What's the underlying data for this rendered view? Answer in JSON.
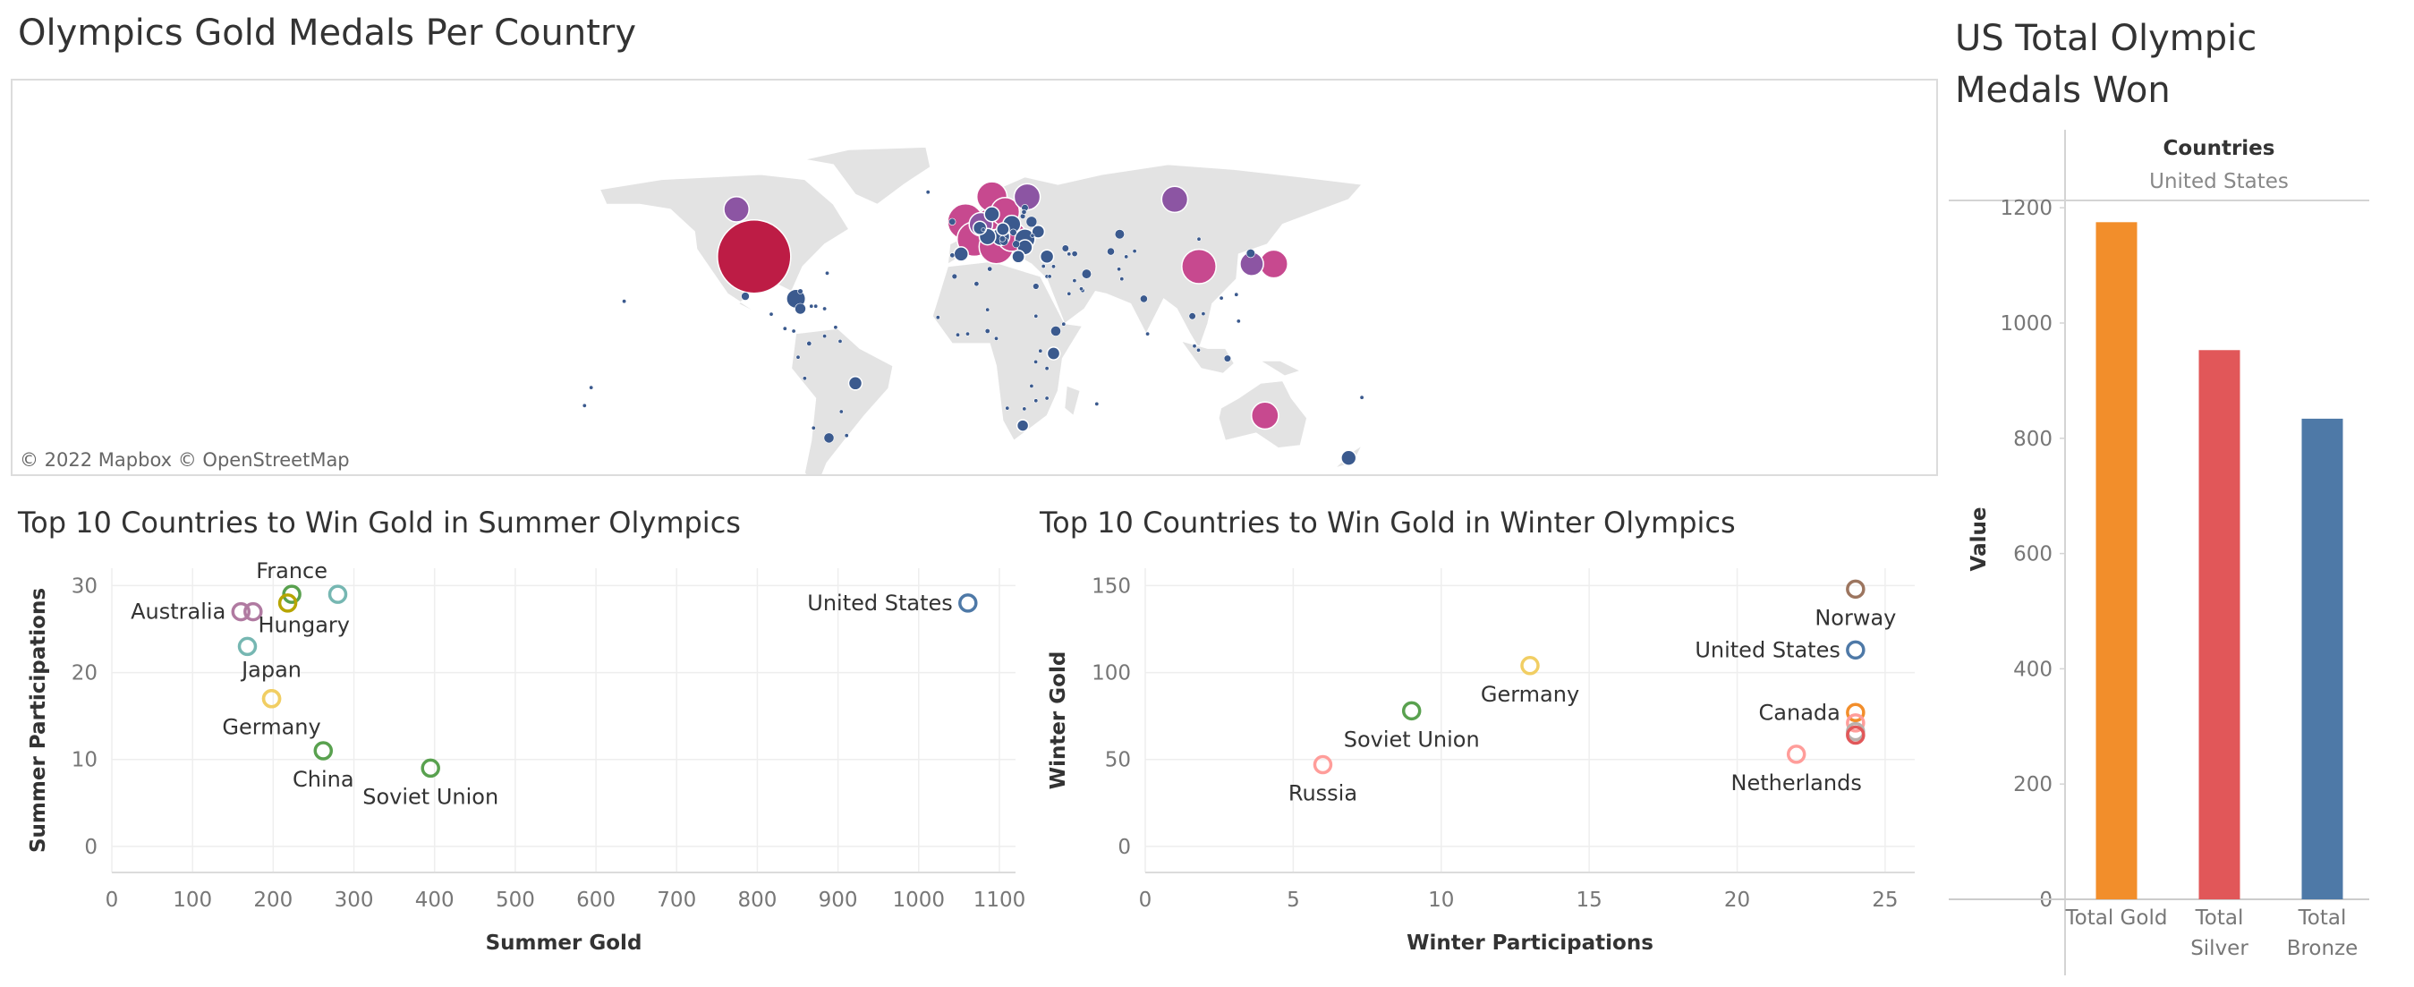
{
  "map": {
    "title": "Olympics Gold Medals Per Country",
    "attribution": "© 2022 Mapbox  © OpenStreetMap",
    "colors": {
      "land": "#e3e3e3",
      "low": "#3b5a8e",
      "mid": "#8c55a3",
      "high": "#c7498f",
      "max": "#bd1c45"
    },
    "bubbles": [
      {
        "country": "United States",
        "lon": -98,
        "lat": 39,
        "gold": 1180
      },
      {
        "country": "Canada",
        "lon": -106,
        "lat": 58,
        "gold": 140
      },
      {
        "country": "Russia",
        "lon": 93,
        "lat": 62,
        "gold": 150
      },
      {
        "country": "China",
        "lon": 104,
        "lat": 35,
        "gold": 260
      },
      {
        "country": "Japan",
        "lon": 138,
        "lat": 36,
        "gold": 170
      },
      {
        "country": "South Korea",
        "lon": 128,
        "lat": 36,
        "gold": 120
      },
      {
        "country": "Australia",
        "lon": 134,
        "lat": -25,
        "gold": 160
      },
      {
        "country": "New Zealand",
        "lon": 172,
        "lat": -42,
        "gold": 50
      },
      {
        "country": "Norway",
        "lon": 10,
        "lat": 63,
        "gold": 200
      },
      {
        "country": "Sweden",
        "lon": 16,
        "lat": 57,
        "gold": 180
      },
      {
        "country": "Finland",
        "lon": 26,
        "lat": 63,
        "gold": 150
      },
      {
        "country": "United Kingdom",
        "lon": -2,
        "lat": 53,
        "gold": 280
      },
      {
        "country": "Germany",
        "lon": 10,
        "lat": 51,
        "gold": 300
      },
      {
        "country": "France",
        "lon": 2,
        "lat": 46,
        "gold": 260
      },
      {
        "country": "Italy",
        "lon": 12,
        "lat": 43,
        "gold": 260
      },
      {
        "country": "Hungary",
        "lon": 19,
        "lat": 47,
        "gold": 190
      },
      {
        "country": "Netherlands",
        "lon": 5,
        "lat": 52,
        "gold": 120
      },
      {
        "country": "Switzerland",
        "lon": 8,
        "lat": 47,
        "gold": 60
      },
      {
        "country": "Austria",
        "lon": 14,
        "lat": 47,
        "gold": 70
      },
      {
        "country": "Poland",
        "lon": 19,
        "lat": 52,
        "gold": 70
      },
      {
        "country": "Cuba",
        "lon": -79,
        "lat": 22,
        "gold": 80
      },
      {
        "country": "Brazil",
        "lon": -52,
        "lat": -12,
        "gold": 40
      },
      {
        "country": "Kenya",
        "lon": 38,
        "lat": 0,
        "gold": 35
      },
      {
        "country": "South Africa",
        "lon": 24,
        "lat": -29,
        "gold": 30
      },
      {
        "country": "Spain",
        "lon": -4,
        "lat": 40,
        "gold": 45
      },
      {
        "country": "Romania",
        "lon": 25,
        "lat": 46,
        "gold": 90
      },
      {
        "country": "Belarus",
        "lon": 28,
        "lat": 53,
        "gold": 25
      },
      {
        "country": "Ukraine",
        "lon": 31,
        "lat": 49,
        "gold": 35
      },
      {
        "country": "Turkey",
        "lon": 35,
        "lat": 39,
        "gold": 40
      },
      {
        "country": "Iran",
        "lon": 53,
        "lat": 32,
        "gold": 20
      },
      {
        "country": "Kazakhstan",
        "lon": 68,
        "lat": 48,
        "gold": 20
      },
      {
        "country": "Ethiopia",
        "lon": 39,
        "lat": 9,
        "gold": 22
      },
      {
        "country": "Egypt",
        "lon": 30,
        "lat": 27,
        "gold": 8
      },
      {
        "country": "Argentina",
        "lon": -64,
        "lat": -34,
        "gold": 22
      },
      {
        "country": "Mexico",
        "lon": -102,
        "lat": 23,
        "gold": 14
      },
      {
        "country": "Jamaica",
        "lon": -77,
        "lat": 18,
        "gold": 25
      },
      {
        "country": "India",
        "lon": 79,
        "lat": 22,
        "gold": 12
      },
      {
        "country": "Thailand",
        "lon": 101,
        "lat": 15,
        "gold": 10
      },
      {
        "country": "Indonesia",
        "lon": 117,
        "lat": -2,
        "gold": 10
      },
      {
        "country": "Uzbekistan",
        "lon": 64,
        "lat": 41,
        "gold": 12
      },
      {
        "country": "Greece",
        "lon": 22,
        "lat": 39,
        "gold": 35
      },
      {
        "country": "Denmark",
        "lon": 10,
        "lat": 56,
        "gold": 50
      },
      {
        "country": "Czechia",
        "lon": 15,
        "lat": 50,
        "gold": 35
      },
      {
        "country": "Bulgaria",
        "lon": 25,
        "lat": 42.7,
        "gold": 50
      },
      {
        "country": "Morocco",
        "lon": -7,
        "lat": 31,
        "gold": 6
      },
      {
        "country": "Algeria",
        "lon": 3,
        "lat": 28,
        "gold": 5
      },
      {
        "country": "Nigeria",
        "lon": 8,
        "lat": 9,
        "gold": 5
      },
      {
        "country": "Colombia",
        "lon": -73,
        "lat": 4,
        "gold": 5
      },
      {
        "country": "Peru",
        "lon": -75,
        "lat": -10,
        "gold": 2
      },
      {
        "country": "Chile",
        "lon": -71,
        "lat": -30,
        "gold": 3
      },
      {
        "country": "Venezuela",
        "lon": -66,
        "lat": 7,
        "gold": 3
      },
      {
        "country": "Pakistan",
        "lon": 69,
        "lat": 30,
        "gold": 3
      },
      {
        "country": "Mongolia",
        "lon": 104,
        "lat": 46,
        "gold": 3
      },
      {
        "country": "Saudi Arabia",
        "lon": 45,
        "lat": 24,
        "gold": 1
      },
      {
        "country": "Vietnam",
        "lon": 106,
        "lat": 16,
        "gold": 1
      },
      {
        "country": "Philippines",
        "lon": 122,
        "lat": 13,
        "gold": 1
      },
      {
        "country": "Malaysia",
        "lon": 102,
        "lat": 3,
        "gold": 1
      },
      {
        "country": "Taiwan",
        "lon": 121,
        "lat": 23.7,
        "gold": 2
      },
      {
        "country": "Tunisia",
        "lon": 9,
        "lat": 34,
        "gold": 5
      },
      {
        "country": "Cameroon",
        "lon": 12,
        "lat": 6,
        "gold": 3
      },
      {
        "country": "Uganda",
        "lon": 32,
        "lat": 1,
        "gold": 3
      },
      {
        "country": "Tanzania",
        "lon": 35,
        "lat": -6,
        "gold": 1
      },
      {
        "country": "Zimbabwe",
        "lon": 30,
        "lat": -19,
        "gold": 3
      },
      {
        "country": "Mozambique",
        "lon": 35,
        "lat": -18,
        "gold": 1
      },
      {
        "country": "Namibia",
        "lon": 17,
        "lat": -22,
        "gold": 1
      },
      {
        "country": "Ecuador",
        "lon": -78,
        "lat": -1.5,
        "gold": 3
      },
      {
        "country": "Uruguay",
        "lon": -56,
        "lat": -33,
        "gold": 2
      },
      {
        "country": "Dominican Republic",
        "lon": -70,
        "lat": 19,
        "gold": 3
      },
      {
        "country": "Puerto Rico",
        "lon": -66,
        "lat": 18,
        "gold": 2
      },
      {
        "country": "Bahamas",
        "lon": -77,
        "lat": 25,
        "gold": 6
      },
      {
        "country": "Trinidad and Tobago",
        "lon": -61,
        "lat": 10.5,
        "gold": 3
      },
      {
        "country": "Panama",
        "lon": -80,
        "lat": 9,
        "gold": 1
      },
      {
        "country": "Costa Rica",
        "lon": -84,
        "lat": 10,
        "gold": 1
      },
      {
        "country": "Haiti",
        "lon": -72,
        "lat": 19,
        "gold": 1
      },
      {
        "country": "Bermuda",
        "lon": -64.8,
        "lat": 32.3,
        "gold": 1
      },
      {
        "country": "Fiji",
        "lon": 178,
        "lat": -17.7,
        "gold": 1
      },
      {
        "country": "Hawaii",
        "lon": -157,
        "lat": 21,
        "gold": 1
      },
      {
        "country": "Samoa",
        "lon": -172,
        "lat": -13.7,
        "gold": 1
      },
      {
        "country": "Tonga",
        "lon": -175,
        "lat": -21,
        "gold": 1
      },
      {
        "country": "Ireland",
        "lon": -8,
        "lat": 53,
        "gold": 10
      },
      {
        "country": "Portugal",
        "lon": -8,
        "lat": 39.5,
        "gold": 5
      },
      {
        "country": "Belgium",
        "lon": 4.5,
        "lat": 50.5,
        "gold": 40
      },
      {
        "country": "Estonia",
        "lon": 25,
        "lat": 58.6,
        "gold": 10
      },
      {
        "country": "Latvia",
        "lon": 24.6,
        "lat": 56.9,
        "gold": 5
      },
      {
        "country": "Lithuania",
        "lon": 24,
        "lat": 55.2,
        "gold": 6
      },
      {
        "country": "Slovakia",
        "lon": 19.7,
        "lat": 48.7,
        "gold": 10
      },
      {
        "country": "Slovenia",
        "lon": 14.8,
        "lat": 46.1,
        "gold": 8
      },
      {
        "country": "Croatia",
        "lon": 15.5,
        "lat": 45.1,
        "gold": 15
      },
      {
        "country": "Serbia",
        "lon": 21,
        "lat": 44,
        "gold": 12
      },
      {
        "country": "Georgia",
        "lon": 43.4,
        "lat": 42.3,
        "gold": 10
      },
      {
        "country": "Armenia",
        "lon": 45,
        "lat": 40,
        "gold": 2
      },
      {
        "country": "Azerbaijan",
        "lon": 47.6,
        "lat": 40.1,
        "gold": 7
      },
      {
        "country": "Israel",
        "lon": 35,
        "lat": 31,
        "gold": 3
      },
      {
        "country": "Syria",
        "lon": 38,
        "lat": 35,
        "gold": 1
      },
      {
        "country": "Kyrgyzstan",
        "lon": 74.8,
        "lat": 41.2,
        "gold": 1
      },
      {
        "country": "Tajikistan",
        "lon": 71,
        "lat": 38.9,
        "gold": 1
      },
      {
        "country": "North Korea",
        "lon": 127.5,
        "lat": 40.3,
        "gold": 16
      },
      {
        "country": "Hong Kong",
        "lon": 114.2,
        "lat": 22.3,
        "gold": 2
      },
      {
        "country": "Singapore",
        "lon": 103.8,
        "lat": 1.35,
        "gold": 1
      },
      {
        "country": "Sri Lanka",
        "lon": 80.7,
        "lat": 7.9,
        "gold": 1
      },
      {
        "country": "Qatar",
        "lon": 51.2,
        "lat": 25.3,
        "gold": 2
      },
      {
        "country": "Bahrain",
        "lon": 50.6,
        "lat": 26,
        "gold": 1
      },
      {
        "country": "Kuwait",
        "lon": 47.5,
        "lat": 29.3,
        "gold": 1
      },
      {
        "country": "Jordan",
        "lon": 36.2,
        "lat": 31,
        "gold": 1
      },
      {
        "country": "Burundi",
        "lon": 29.9,
        "lat": -3.4,
        "gold": 1
      },
      {
        "country": "Zambia",
        "lon": 28,
        "lat": -13.1,
        "gold": 1
      },
      {
        "country": "Ghana",
        "lon": -1,
        "lat": 7.9,
        "gold": 1
      },
      {
        "country": "Senegal",
        "lon": -14.5,
        "lat": 14.5,
        "gold": 1
      },
      {
        "country": "Ivory Coast",
        "lon": -5.5,
        "lat": 7.5,
        "gold": 1
      },
      {
        "country": "Niger",
        "lon": 8,
        "lat": 17.6,
        "gold": 1
      },
      {
        "country": "Sudan",
        "lon": 30,
        "lat": 15,
        "gold": 1
      },
      {
        "country": "Djibouti",
        "lon": 42.6,
        "lat": 11.8,
        "gold": 1
      },
      {
        "country": "Botswana",
        "lon": 24.7,
        "lat": -22.3,
        "gold": 1
      },
      {
        "country": "Mauritius",
        "lon": 57.6,
        "lat": -20.3,
        "gold": 1
      },
      {
        "country": "Guatemala",
        "lon": -90.2,
        "lat": 15.8,
        "gold": 1
      },
      {
        "country": "Paraguay",
        "lon": -58.4,
        "lat": -23.4,
        "gold": 1
      },
      {
        "country": "Guyana",
        "lon": -58.9,
        "lat": 4.9,
        "gold": 1
      },
      {
        "country": "Afghanistan",
        "lon": 67.7,
        "lat": 33.9,
        "gold": 1
      },
      {
        "country": "Cyprus",
        "lon": 33.4,
        "lat": 35.1,
        "gold": 1
      },
      {
        "country": "Iceland",
        "lon": -19,
        "lat": 64.9,
        "gold": 1
      },
      {
        "country": "Moldova",
        "lon": 28.4,
        "lat": 47.4,
        "gold": 1
      },
      {
        "country": "Luxembourg",
        "lon": 6.1,
        "lat": 49.8,
        "gold": 2
      }
    ]
  },
  "summer": {
    "title": "Top 10 Countries to Win Gold in Summer Olympics",
    "chart_data": {
      "type": "scatter",
      "xlabel": "Summer Gold",
      "ylabel": "Summer Participations",
      "xlim": [
        0,
        1120
      ],
      "ylim": [
        -3,
        32
      ],
      "xticks": [
        0,
        100,
        200,
        300,
        400,
        500,
        600,
        700,
        800,
        900,
        1000,
        1100
      ],
      "yticks": [
        0,
        10,
        20,
        30
      ],
      "grid": true,
      "points": [
        {
          "label": "United States",
          "x": 1061,
          "y": 28,
          "color": "#4e79a7",
          "label_pos": "left"
        },
        {
          "label": "France",
          "x": 223,
          "y": 29,
          "color": "#59a14f",
          "label_pos": "above"
        },
        {
          "label": "",
          "x": 280,
          "y": 29,
          "color": "#76b7b2",
          "label_pos": "none"
        },
        {
          "label": "",
          "x": 218,
          "y": 28,
          "color": "#b7a500",
          "label_pos": "none"
        },
        {
          "label": "Australia",
          "x": 160,
          "y": 27,
          "color": "#b07aa1",
          "label_pos": "left"
        },
        {
          "label": "",
          "x": 175,
          "y": 27,
          "color": "#b07aa1",
          "label_pos": "none"
        },
        {
          "label": "Hungary",
          "x": 168,
          "y": 23,
          "color": "#76b7b2",
          "label_pos": "below-right"
        },
        {
          "label": "Japan",
          "x": 198,
          "y": 17,
          "color": "#f1ce63",
          "label_pos": "above-left"
        },
        {
          "label": "Germany",
          "x": 198,
          "y": 17,
          "color": "#f1ce63",
          "label_pos": "below"
        },
        {
          "label": "China",
          "x": 262,
          "y": 11,
          "color": "#59a14f",
          "label_pos": "below"
        },
        {
          "label": "Soviet Union",
          "x": 395,
          "y": 9,
          "color": "#59a14f",
          "label_pos": "below"
        }
      ]
    }
  },
  "winter": {
    "title": "Top 10 Countries to Win Gold in Winter Olympics",
    "chart_data": {
      "type": "scatter",
      "xlabel": "Winter Participations",
      "ylabel": "Winter Gold",
      "xlim": [
        0,
        26
      ],
      "ylim": [
        -15,
        160
      ],
      "xticks": [
        0,
        5,
        10,
        15,
        20,
        25
      ],
      "yticks": [
        0,
        50,
        100,
        150
      ],
      "grid": true,
      "points": [
        {
          "label": "Norway",
          "x": 24,
          "y": 148,
          "color": "#9c755f",
          "label_pos": "below"
        },
        {
          "label": "United States",
          "x": 24,
          "y": 113,
          "color": "#4e79a7",
          "label_pos": "left"
        },
        {
          "label": "Germany",
          "x": 13,
          "y": 104,
          "color": "#f1ce63",
          "label_pos": "below"
        },
        {
          "label": "Canada",
          "x": 24,
          "y": 77,
          "color": "#f28e2b",
          "label_pos": "left"
        },
        {
          "label": "",
          "x": 24,
          "y": 71,
          "color": "#ff9d9a",
          "label_pos": "none"
        },
        {
          "label": "",
          "x": 24,
          "y": 66,
          "color": "#bab0ac",
          "label_pos": "none"
        },
        {
          "label": "",
          "x": 24,
          "y": 64,
          "color": "#e15759",
          "label_pos": "none"
        },
        {
          "label": "Soviet Union",
          "x": 9,
          "y": 78,
          "color": "#59a14f",
          "label_pos": "below"
        },
        {
          "label": "Netherlands",
          "x": 22,
          "y": 53,
          "color": "#ff9d9a",
          "label_pos": "below"
        },
        {
          "label": "Russia",
          "x": 6,
          "y": 47,
          "color": "#ff9d9a",
          "label_pos": "below"
        }
      ]
    }
  },
  "us": {
    "title": "US Total Olympic Medals Won",
    "header_label": "Countries",
    "header_value": "United States",
    "chart_data": {
      "type": "bar",
      "categories": [
        "Total Gold",
        "Total Silver",
        "Total Bronze"
      ],
      "category_lines": [
        [
          "Total Gold"
        ],
        [
          "Total",
          "Silver"
        ],
        [
          "Total",
          "Bronze"
        ]
      ],
      "values": [
        1175,
        953,
        834
      ],
      "colors": [
        "#f28e2b",
        "#e15759",
        "#4e79a7"
      ],
      "ylabel": "Value",
      "ylim": [
        0,
        1250
      ],
      "yticks": [
        0,
        200,
        400,
        600,
        800,
        1000,
        1200
      ]
    }
  }
}
